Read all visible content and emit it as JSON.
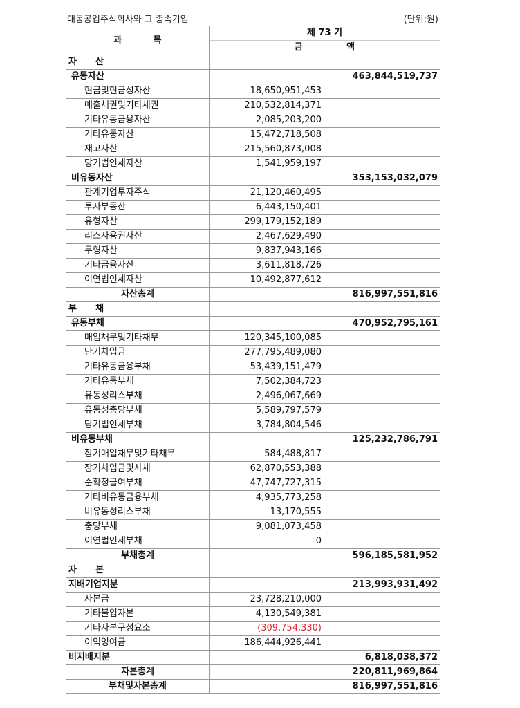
{
  "header": {
    "company": "대동공업주식회사와 그 종속기업",
    "unit": "(단위:원)",
    "subject_label": "과          목",
    "period_label": "제 73 기",
    "amount_label": "금              액"
  },
  "colors": {
    "negative": "#e0252b"
  },
  "rows": [
    {
      "type": "section",
      "label": "자      산",
      "item": "",
      "subtotal": ""
    },
    {
      "type": "group",
      "label": "유동자산",
      "item": "",
      "subtotal": "463,844,519,737"
    },
    {
      "type": "item",
      "label": "현금및현금성자산",
      "item": "18,650,951,453",
      "subtotal": ""
    },
    {
      "type": "item",
      "label": "매출채권및기타채권",
      "item": "210,532,814,371",
      "subtotal": ""
    },
    {
      "type": "item",
      "label": "기타유동금융자산",
      "item": "2,085,203,200",
      "subtotal": ""
    },
    {
      "type": "item",
      "label": "기타유동자산",
      "item": "15,472,718,508",
      "subtotal": ""
    },
    {
      "type": "item",
      "label": "재고자산",
      "item": "215,560,873,008",
      "subtotal": ""
    },
    {
      "type": "item",
      "label": "당기법인세자산",
      "item": "1,541,959,197",
      "subtotal": ""
    },
    {
      "type": "group",
      "label": "비유동자산",
      "item": "",
      "subtotal": "353,153,032,079"
    },
    {
      "type": "item",
      "label": "관계기업투자주식",
      "item": "21,120,460,495",
      "subtotal": ""
    },
    {
      "type": "item",
      "label": "투자부동산",
      "item": "6,443,150,401",
      "subtotal": ""
    },
    {
      "type": "item",
      "label": "유형자산",
      "item": "299,179,152,189",
      "subtotal": ""
    },
    {
      "type": "item",
      "label": "리스사용권자산",
      "item": "2,467,629,490",
      "subtotal": ""
    },
    {
      "type": "item",
      "label": "무형자산",
      "item": "9,837,943,166",
      "subtotal": ""
    },
    {
      "type": "item",
      "label": "기타금융자산",
      "item": "3,611,818,726",
      "subtotal": ""
    },
    {
      "type": "item",
      "label": "이연법인세자산",
      "item": "10,492,877,612",
      "subtotal": ""
    },
    {
      "type": "total",
      "label": "자산총계",
      "item": "",
      "subtotal": "816,997,551,816"
    },
    {
      "type": "section",
      "label": "부      채",
      "item": "",
      "subtotal": ""
    },
    {
      "type": "group",
      "label": "유동부채",
      "item": "",
      "subtotal": "470,952,795,161"
    },
    {
      "type": "item",
      "label": "매입채무및기타채무",
      "item": "120,345,100,085",
      "subtotal": ""
    },
    {
      "type": "item",
      "label": "단기차입금",
      "item": "277,795,489,080",
      "subtotal": ""
    },
    {
      "type": "item",
      "label": "기타유동금융부채",
      "item": "53,439,151,479",
      "subtotal": ""
    },
    {
      "type": "item",
      "label": "기타유동부채",
      "item": "7,502,384,723",
      "subtotal": ""
    },
    {
      "type": "item",
      "label": "유동성리스부채",
      "item": "2,496,067,669",
      "subtotal": ""
    },
    {
      "type": "item",
      "label": "유동성충당부채",
      "item": "5,589,797,579",
      "subtotal": ""
    },
    {
      "type": "item",
      "label": "당기법인세부채",
      "item": "3,784,804,546",
      "subtotal": ""
    },
    {
      "type": "group",
      "label": "비유동부채",
      "item": "",
      "subtotal": "125,232,786,791"
    },
    {
      "type": "item",
      "label": "장기매입채무및기타채무",
      "item": "584,488,817",
      "subtotal": ""
    },
    {
      "type": "item",
      "label": "장기차입금및사채",
      "item": "62,870,553,388",
      "subtotal": ""
    },
    {
      "type": "item",
      "label": "순확정급여부채",
      "item": "47,747,727,315",
      "subtotal": ""
    },
    {
      "type": "item",
      "label": "기타비유동금융부채",
      "item": "4,935,773,258",
      "subtotal": ""
    },
    {
      "type": "item",
      "label": "비유동성리스부채",
      "item": "13,170,555",
      "subtotal": ""
    },
    {
      "type": "item",
      "label": "충당부채",
      "item": "9,081,073,458",
      "subtotal": ""
    },
    {
      "type": "item",
      "label": "이연법인세부채",
      "item": "0",
      "subtotal": ""
    },
    {
      "type": "total",
      "label": "부채총계",
      "item": "",
      "subtotal": "596,185,581,952"
    },
    {
      "type": "section",
      "label": "자      본",
      "item": "",
      "subtotal": ""
    },
    {
      "type": "group0",
      "label": "지배기업지분",
      "item": "",
      "subtotal": "213,993,931,492"
    },
    {
      "type": "item",
      "label": "자본금",
      "item": "23,728,210,000",
      "subtotal": ""
    },
    {
      "type": "item",
      "label": "기타불입자본",
      "item": "4,130,549,381",
      "subtotal": ""
    },
    {
      "type": "item",
      "label": "기타자본구성요소",
      "item": "(309,754,330)",
      "subtotal": "",
      "negative": true
    },
    {
      "type": "item",
      "label": "이익잉여금",
      "item": "186,444,926,441",
      "subtotal": ""
    },
    {
      "type": "group0",
      "label": "비지배지분",
      "item": "",
      "subtotal": "6,818,038,372"
    },
    {
      "type": "total",
      "label": "자본총계",
      "item": "",
      "subtotal": "220,811,969,864"
    },
    {
      "type": "total",
      "label": "부채및자본총계",
      "item": "",
      "subtotal": "816,997,551,816"
    }
  ]
}
